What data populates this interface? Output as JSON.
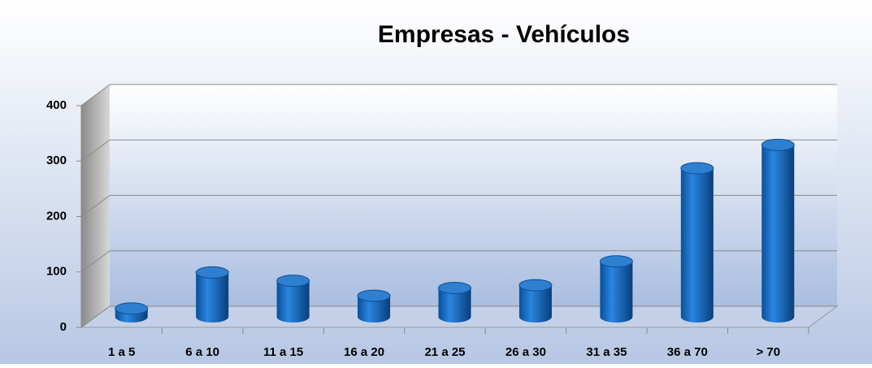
{
  "chart_data": {
    "type": "bar3d",
    "title": "Empresas - Vehículos",
    "categories": [
      "1 a 5",
      "6 a 10",
      "11 a 15",
      "16 a 20",
      "21 a 25",
      "26  a 30",
      "31 a 35",
      "36 a 70",
      "> 70"
    ],
    "values": [
      15,
      80,
      65,
      38,
      52,
      57,
      100,
      268,
      310
    ],
    "color": "#0a5fb4",
    "ylim": [
      0,
      400
    ],
    "yticks": [
      0,
      100,
      200,
      300,
      400
    ],
    "grid": true
  }
}
